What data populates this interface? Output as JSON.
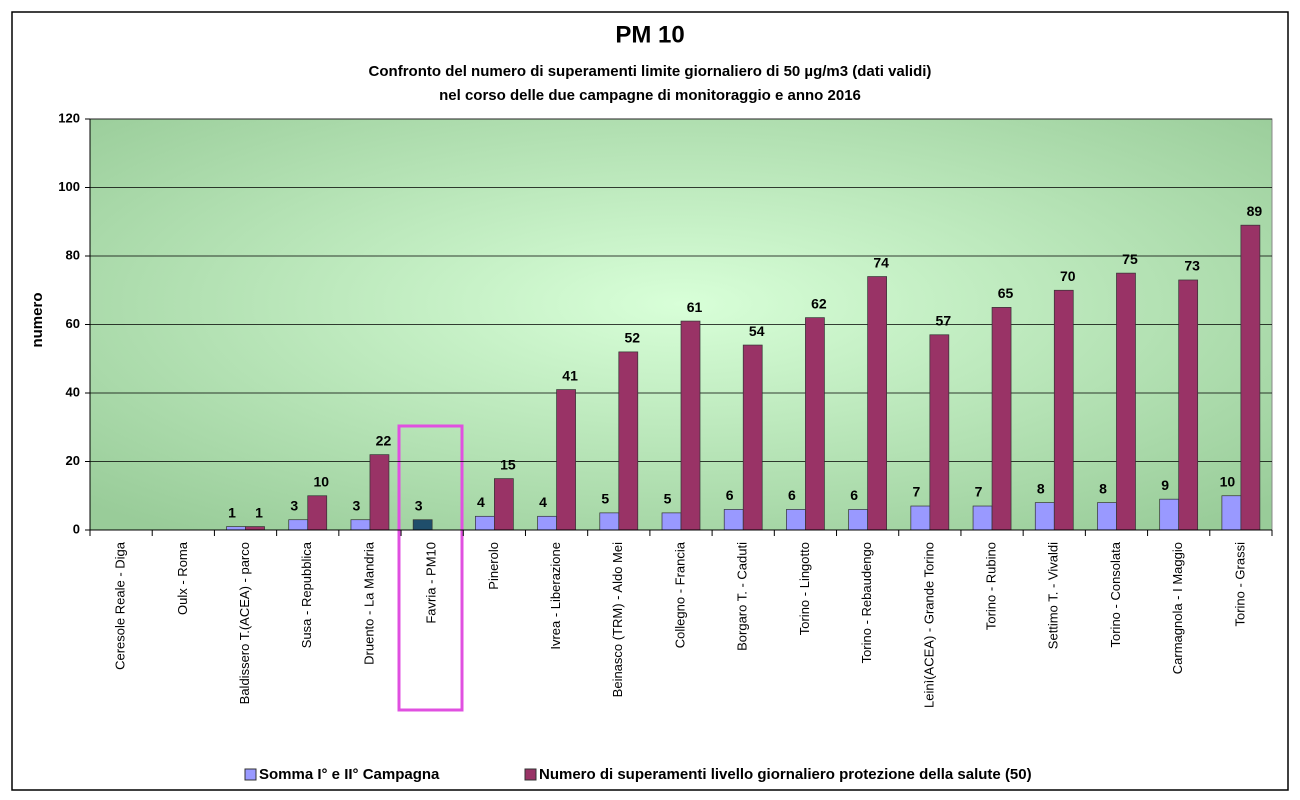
{
  "chart_data": {
    "type": "bar",
    "title": "PM 10",
    "subtitle": [
      "Confronto del numero di superamenti limite giornaliero di 50 µg/m3 (dati validi)",
      "nel corso delle due campagne di monitoraggio e anno 2016"
    ],
    "y_label": "numero",
    "categories": [
      "Ceresole Reale - Diga",
      "Oulx - Roma",
      "Baldissero T.(ACEA) - parco",
      "Susa - Repubblica",
      "Druento - La Mandria",
      "Favria - PM10",
      "Pinerolo",
      "Ivrea - Liberazione",
      "Beinasco (TRM) - Aldo Mei",
      "Collegno - Francia",
      "Borgaro T. - Caduti",
      "Torino - Lingotto",
      "Torino - Rebaudengo",
      "Leinì(ACEA) - Grande Torino",
      "Torino - Rubino",
      "Settimo T. - Vivaldi",
      "Torino - Consolata",
      "Carmagnola - I Maggio",
      "Torino - Grassi"
    ],
    "series": [
      {
        "name": "Somma I° e II° Campagna",
        "color": "#9999ff",
        "colors": [
          "#9999ff",
          "#9999ff",
          "#9999ff",
          "#9999ff",
          "#9999ff",
          "#1f4e6b",
          "#9999ff",
          "#9999ff",
          "#9999ff",
          "#9999ff",
          "#9999ff",
          "#9999ff",
          "#9999ff",
          "#9999ff",
          "#9999ff",
          "#9999ff",
          "#9999ff",
          "#9999ff",
          "#9999ff"
        ],
        "values": [
          null,
          null,
          1,
          3,
          3,
          3,
          4,
          4,
          5,
          5,
          6,
          6,
          6,
          7,
          7,
          8,
          8,
          9,
          10
        ]
      },
      {
        "name": "Numero di superamenti livello giornaliero protezione della salute (50)",
        "color": "#993366",
        "values": [
          null,
          null,
          1,
          10,
          22,
          null,
          15,
          41,
          52,
          61,
          54,
          62,
          74,
          57,
          65,
          70,
          75,
          73,
          89
        ]
      }
    ],
    "ylim": [
      0,
      120
    ],
    "yticks": [
      0,
      20,
      40,
      60,
      80,
      100,
      120
    ],
    "grid": true,
    "data_labels": true
  }
}
